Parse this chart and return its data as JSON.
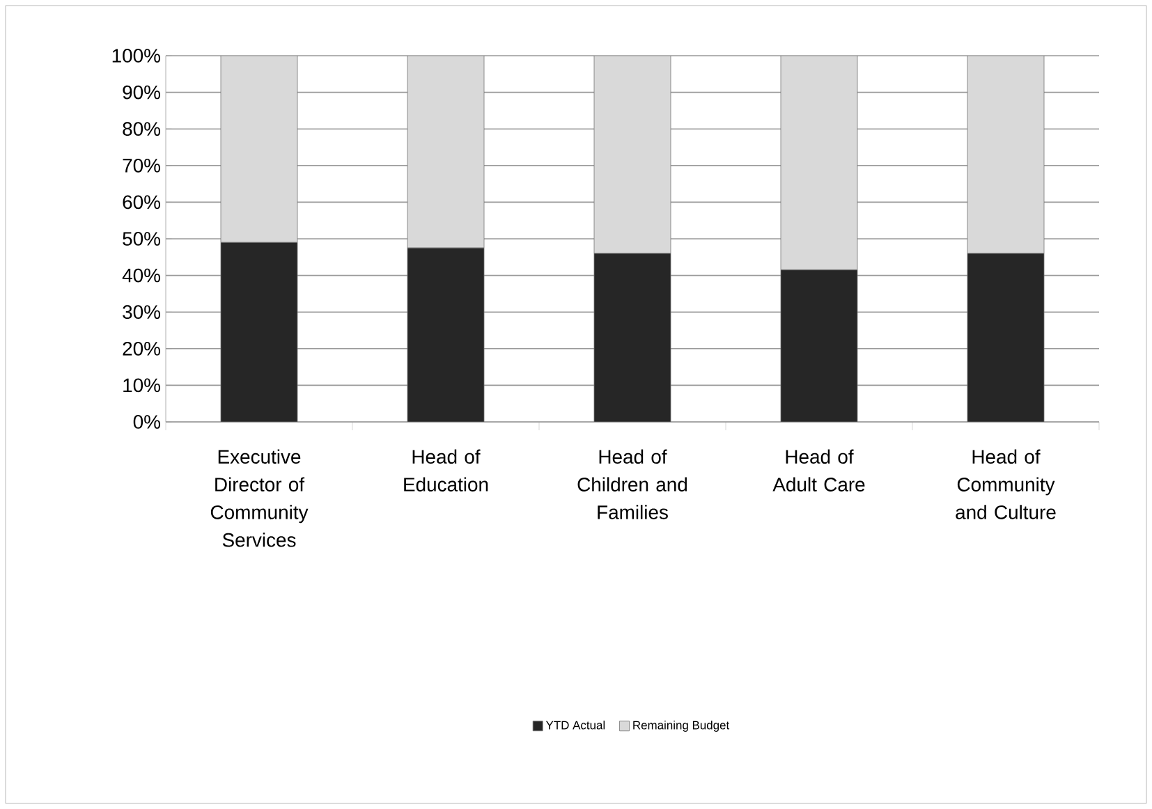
{
  "chart_data": {
    "type": "bar",
    "stacked": true,
    "categories": [
      "Executive Director of Community Services",
      "Head of Education",
      "Head of Children and Families",
      "Head of Adult Care",
      "Head of Community and Culture"
    ],
    "series": [
      {
        "name": "YTD Actual",
        "color": "#262626",
        "values": [
          49,
          47.5,
          46,
          41.5,
          46
        ]
      },
      {
        "name": "Remaining Budget",
        "color": "#d9d9d9",
        "values": [
          51,
          52.5,
          54,
          58.5,
          54
        ]
      }
    ],
    "ylim": [
      0,
      100
    ],
    "yticks": [
      {
        "value": 0,
        "label": "0%"
      },
      {
        "value": 10,
        "label": "10%"
      },
      {
        "value": 20,
        "label": "20%"
      },
      {
        "value": 30,
        "label": "30%"
      },
      {
        "value": 40,
        "label": "40%"
      },
      {
        "value": 50,
        "label": "50%"
      },
      {
        "value": 60,
        "label": "60%"
      },
      {
        "value": 70,
        "label": "70%"
      },
      {
        "value": 80,
        "label": "80%"
      },
      {
        "value": 90,
        "label": "90%"
      },
      {
        "value": 100,
        "label": "100%"
      }
    ],
    "grid": "y",
    "legend": "bottom"
  }
}
